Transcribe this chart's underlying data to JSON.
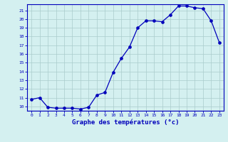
{
  "hours": [
    0,
    1,
    2,
    3,
    4,
    5,
    6,
    7,
    8,
    9,
    10,
    11,
    12,
    13,
    14,
    15,
    16,
    17,
    18,
    19,
    20,
    21,
    22,
    23
  ],
  "temps": [
    10.8,
    11.0,
    9.9,
    9.8,
    9.8,
    9.8,
    9.7,
    9.9,
    11.3,
    11.6,
    13.9,
    15.5,
    16.8,
    19.0,
    19.8,
    19.8,
    19.7,
    20.5,
    21.5,
    21.5,
    21.3,
    21.2,
    19.8,
    17.3
  ],
  "xlim": [
    -0.5,
    23.5
  ],
  "ylim": [
    9.5,
    21.7
  ],
  "yticks": [
    10,
    11,
    12,
    13,
    14,
    15,
    16,
    17,
    18,
    19,
    20,
    21
  ],
  "xticks": [
    0,
    1,
    2,
    3,
    4,
    5,
    6,
    7,
    8,
    9,
    10,
    11,
    12,
    13,
    14,
    15,
    16,
    17,
    18,
    19,
    20,
    21,
    22,
    23
  ],
  "xlabel": "Graphe des températures (°c)",
  "line_color": "#0000bb",
  "marker": "o",
  "bg_color": "#d4f0f0",
  "grid_color": "#aacccc",
  "label_color": "#0000bb",
  "axis_color": "#0000bb",
  "tick_color": "#0000bb"
}
